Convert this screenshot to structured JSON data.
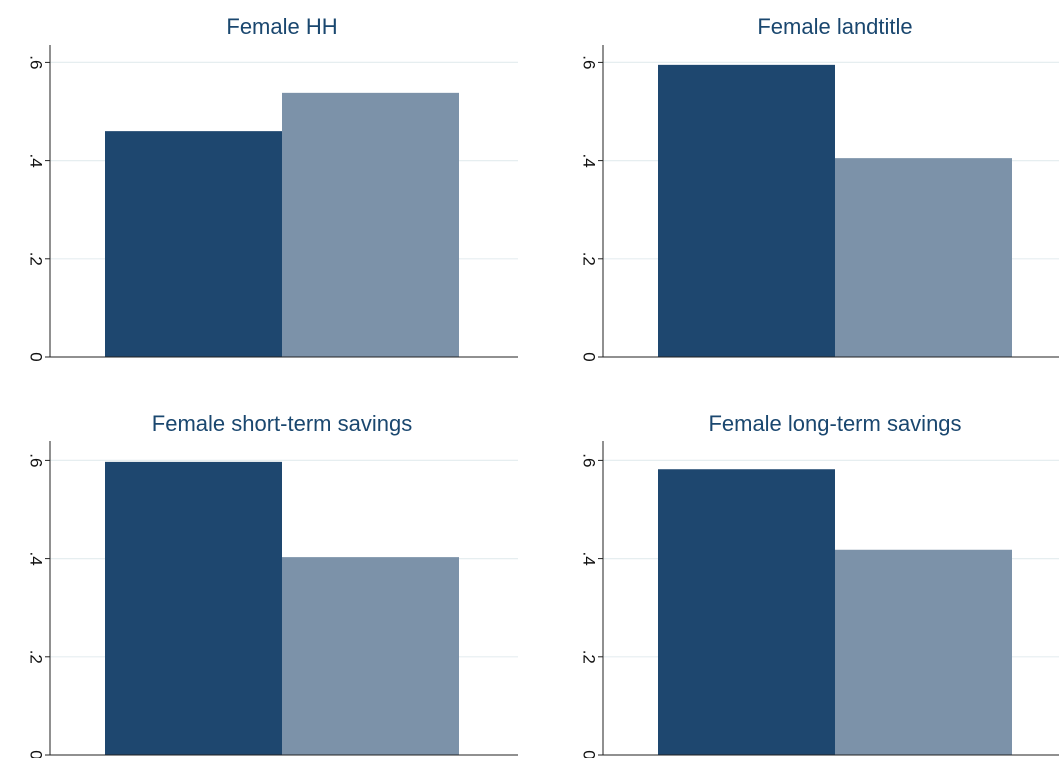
{
  "chart_data": [
    {
      "type": "bar",
      "title": "Female HH",
      "ylim": [
        0,
        0.65
      ],
      "yticks": [
        0,
        0.2,
        0.4,
        0.6
      ],
      "ytick_labels": [
        "0",
        ".2",
        ".4",
        ".6"
      ],
      "grid": true,
      "values": [
        0.46,
        0.538
      ],
      "colors": [
        "#1e476f",
        "#7c92a9"
      ]
    },
    {
      "type": "bar",
      "title": "Female landtitle",
      "ylim": [
        0,
        0.65
      ],
      "yticks": [
        0,
        0.2,
        0.4,
        0.6
      ],
      "ytick_labels": [
        "0",
        ".2",
        ".4",
        ".6"
      ],
      "grid": true,
      "values": [
        0.595,
        0.405
      ],
      "colors": [
        "#1e476f",
        "#7c92a9"
      ]
    },
    {
      "type": "bar",
      "title": "Female short-term savings",
      "ylim": [
        0,
        0.65
      ],
      "yticks": [
        0,
        0.2,
        0.4,
        0.6
      ],
      "ytick_labels": [
        "0",
        ".2",
        ".4",
        ".6"
      ],
      "grid": true,
      "values": [
        0.597,
        0.403
      ],
      "colors": [
        "#1e476f",
        "#7c92a9"
      ]
    },
    {
      "type": "bar",
      "title": "Female long-term savings",
      "ylim": [
        0,
        0.65
      ],
      "yticks": [
        0,
        0.2,
        0.4,
        0.6
      ],
      "ytick_labels": [
        "0",
        ".2",
        ".4",
        ".6"
      ],
      "grid": true,
      "values": [
        0.582,
        0.418
      ],
      "colors": [
        "#1e476f",
        "#7c92a9"
      ]
    }
  ]
}
